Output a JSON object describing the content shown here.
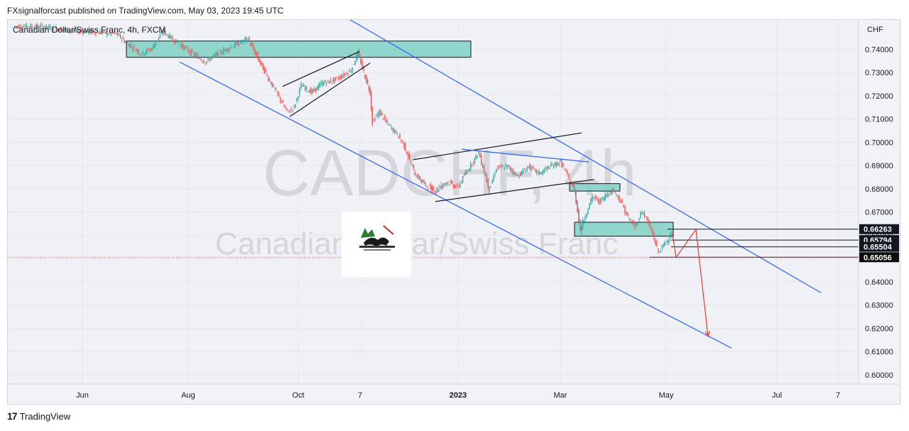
{
  "header": {
    "publisher_line": "FXsignalforcast published on TradingView.com, May 03, 2023 19:45 UTC"
  },
  "chart_title": "Canadian Dollar/Swiss Franc, 4h, FXCM",
  "watermark": {
    "symbol": "CADCHF, 4h",
    "name": "Canadian Dollar/Swiss Franc"
  },
  "footer": {
    "brand": "TradingView",
    "logo_glyph": "17"
  },
  "colors": {
    "bull": "#26a69a",
    "bear": "#ef5350",
    "channel": "#2962ff",
    "zone_fill": "#7fd1c4",
    "arrow": "#e53935"
  },
  "chart_data": {
    "type": "line",
    "instrument": "CADCHF",
    "timeframe": "4h",
    "currency_axis_label": "CHF",
    "x_ticks": [
      "Jun",
      "Aug",
      "Oct",
      "7",
      "2023",
      "Mar",
      "May",
      "Jul",
      "7"
    ],
    "y_ticks": [
      "0.74000",
      "0.73000",
      "0.72000",
      "0.71000",
      "0.70000",
      "0.69000",
      "0.68000",
      "0.67000",
      "0.66000",
      "0.65000",
      "0.64000",
      "0.63000",
      "0.62000",
      "0.61000",
      "0.60000"
    ],
    "ylim": [
      0.596,
      0.7526
    ],
    "price_labels": [
      {
        "text": "0.66263",
        "value": 0.66263
      },
      {
        "text": "0.65794",
        "value": 0.65794
      },
      {
        "text": "0.65504",
        "value": 0.65504
      },
      {
        "text": "0.65056",
        "value": 0.65056
      }
    ],
    "series": [
      {
        "values": [
          [
            20,
            0.7499
          ],
          [
            60,
            0.7498
          ],
          [
            100,
            0.748
          ],
          [
            140,
            0.7472
          ],
          [
            165,
            0.7465
          ],
          [
            180,
            0.7425
          ],
          [
            200,
            0.738
          ],
          [
            215,
            0.7405
          ],
          [
            230,
            0.7475
          ],
          [
            250,
            0.743
          ],
          [
            270,
            0.7385
          ],
          [
            290,
            0.7345
          ],
          [
            310,
            0.7385
          ],
          [
            330,
            0.7415
          ],
          [
            350,
            0.7445
          ],
          [
            360,
            0.7385
          ],
          [
            375,
            0.7295
          ],
          [
            390,
            0.7215
          ],
          [
            405,
            0.713
          ],
          [
            415,
            0.715
          ],
          [
            425,
            0.7245
          ],
          [
            440,
            0.7215
          ],
          [
            455,
            0.7255
          ],
          [
            470,
            0.7265
          ],
          [
            485,
            0.729
          ],
          [
            495,
            0.731
          ],
          [
            505,
            0.7385
          ],
          [
            515,
            0.728
          ],
          [
            522,
            0.7215
          ],
          [
            525,
            0.7085
          ],
          [
            535,
            0.713
          ],
          [
            545,
            0.7085
          ],
          [
            560,
            0.7035
          ],
          [
            570,
            0.6985
          ],
          [
            585,
            0.6865
          ],
          [
            600,
            0.6815
          ],
          [
            615,
            0.679
          ],
          [
            630,
            0.683
          ],
          [
            645,
            0.6805
          ],
          [
            660,
            0.6885
          ],
          [
            675,
            0.6955
          ],
          [
            690,
            0.6795
          ],
          [
            700,
            0.689
          ],
          [
            715,
            0.6895
          ],
          [
            730,
            0.6855
          ],
          [
            745,
            0.6895
          ],
          [
            760,
            0.6865
          ],
          [
            775,
            0.6895
          ],
          [
            790,
            0.6915
          ],
          [
            800,
            0.6855
          ],
          [
            810,
            0.679
          ],
          [
            818,
            0.6625
          ],
          [
            825,
            0.6685
          ],
          [
            835,
            0.6765
          ],
          [
            845,
            0.6745
          ],
          [
            855,
            0.6775
          ],
          [
            865,
            0.6795
          ],
          [
            875,
            0.6745
          ],
          [
            885,
            0.6675
          ],
          [
            895,
            0.6635
          ],
          [
            905,
            0.6705
          ],
          [
            912,
            0.6665
          ],
          [
            920,
            0.6605
          ],
          [
            928,
            0.6525
          ],
          [
            935,
            0.6555
          ],
          [
            942,
            0.6585
          ],
          [
            947,
            0.6606
          ]
        ]
      }
    ],
    "annotations": {
      "channel_upper": [
        [
          408,
          0.7677
        ],
        [
          1156,
          0.6353
        ]
      ],
      "channel_lower": [
        [
          253,
          0.7345
        ],
        [
          1030,
          0.6115
        ]
      ],
      "zones": [
        {
          "x": [
            178,
            663
          ],
          "y": [
            0.7365,
            0.7435
          ]
        },
        {
          "x": [
            802,
            873
          ],
          "y": [
            0.679,
            0.6822
          ]
        },
        {
          "x": [
            809,
            948
          ],
          "y": [
            0.6596,
            0.6656
          ]
        }
      ],
      "forecast_path": [
        [
          947,
          0.6602
        ],
        [
          952,
          0.6505
        ],
        [
          980,
          0.6625
        ],
        [
          997,
          0.6165
        ]
      ],
      "level_lines": [
        {
          "value": 0.66263,
          "x": [
            940,
            1210
          ]
        },
        {
          "value": 0.65794,
          "x": [
            945,
            1210
          ]
        },
        {
          "value": 0.65504,
          "x": [
            945,
            1210
          ]
        },
        {
          "value": 0.65056,
          "x": [
            915,
            1210
          ]
        }
      ],
      "dotted_level": 0.65056
    }
  }
}
